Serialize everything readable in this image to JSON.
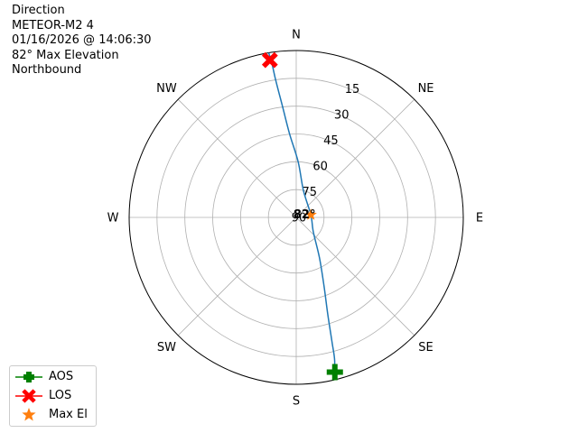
{
  "header": {
    "lines": [
      "Direction",
      "METEOR-M2 4",
      "01/16/2026 @ 14:06:30",
      "82° Max Elevation",
      "Northbound"
    ]
  },
  "colors": {
    "track": "#1f77b4",
    "aos": "#008000",
    "los": "#ff0000",
    "max_el": "#ff7f0e",
    "grid": "#b0b0b0",
    "frame": "#000000"
  },
  "legend": [
    {
      "key": "aos",
      "label": "AOS",
      "icon": "plus-marker-icon"
    },
    {
      "key": "los",
      "label": "LOS",
      "icon": "x-marker-icon"
    },
    {
      "key": "max_el",
      "label": "Max El",
      "icon": "star-marker-icon"
    }
  ],
  "chart_data": {
    "type": "polar",
    "title": "",
    "theta_direction": "clockwise",
    "theta_zero": "N",
    "direction_labels": [
      {
        "label": "N",
        "az": 0
      },
      {
        "label": "NE",
        "az": 45
      },
      {
        "label": "E",
        "az": 90
      },
      {
        "label": "SE",
        "az": 135
      },
      {
        "label": "S",
        "az": 180
      },
      {
        "label": "SW",
        "az": 225
      },
      {
        "label": "W",
        "az": 270
      },
      {
        "label": "NW",
        "az": 315
      }
    ],
    "radial_axis": {
      "quantity": "elevation",
      "inverted": true,
      "range": [
        90,
        0
      ]
    },
    "elevation_ticks": [
      90,
      75,
      60,
      45,
      30,
      15
    ],
    "grid": true,
    "series": [
      {
        "key": "track",
        "points": [
          {
            "az": 167,
            "el": 0
          },
          {
            "az": 165,
            "el": 10
          },
          {
            "az": 164,
            "el": 20
          },
          {
            "az": 162,
            "el": 35
          },
          {
            "az": 158,
            "el": 50
          },
          {
            "az": 150,
            "el": 65
          },
          {
            "az": 130,
            "el": 78
          },
          {
            "az": 80,
            "el": 82
          },
          {
            "az": 15,
            "el": 75
          },
          {
            "az": 2,
            "el": 60
          },
          {
            "az": 355.5,
            "el": 45
          },
          {
            "az": 353,
            "el": 30
          },
          {
            "az": 351.5,
            "el": 15
          },
          {
            "az": 351,
            "el": 5
          },
          {
            "az": 350.5,
            "el": 0
          }
        ]
      }
    ],
    "markers": {
      "aos": {
        "az": 166,
        "el": 4
      },
      "los": {
        "az": 350.5,
        "el": 4
      },
      "max_el": {
        "az": 80,
        "el": 82,
        "label": "82°"
      }
    },
    "legend_position": "lower-left"
  }
}
